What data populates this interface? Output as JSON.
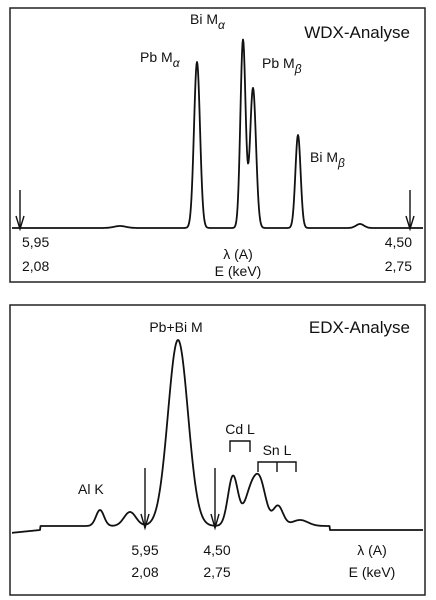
{
  "panels": [
    {
      "title": "WDX-Analyse",
      "peaks": [
        {
          "label": "Pb M",
          "sub": "α"
        },
        {
          "label": "Bi M",
          "sub": "α"
        },
        {
          "label": "Pb M",
          "sub": "β"
        },
        {
          "label": "Bi M",
          "sub": "β"
        }
      ],
      "left": [
        "5,95",
        "2,08"
      ],
      "right": [
        "4,50",
        "2,75"
      ],
      "units": [
        "λ (A)",
        "E (keV)"
      ]
    },
    {
      "title": "EDX-Analyse",
      "peaks": [
        {
          "label": "Al K"
        },
        {
          "label": "Pb+Bi M"
        },
        {
          "label": "Cd L"
        },
        {
          "label": "Sn L"
        }
      ],
      "left": [
        "5,95",
        "2,08"
      ],
      "right": [
        "4,50",
        "2,75"
      ],
      "units": [
        "λ (A)",
        "E (keV)"
      ]
    }
  ]
}
